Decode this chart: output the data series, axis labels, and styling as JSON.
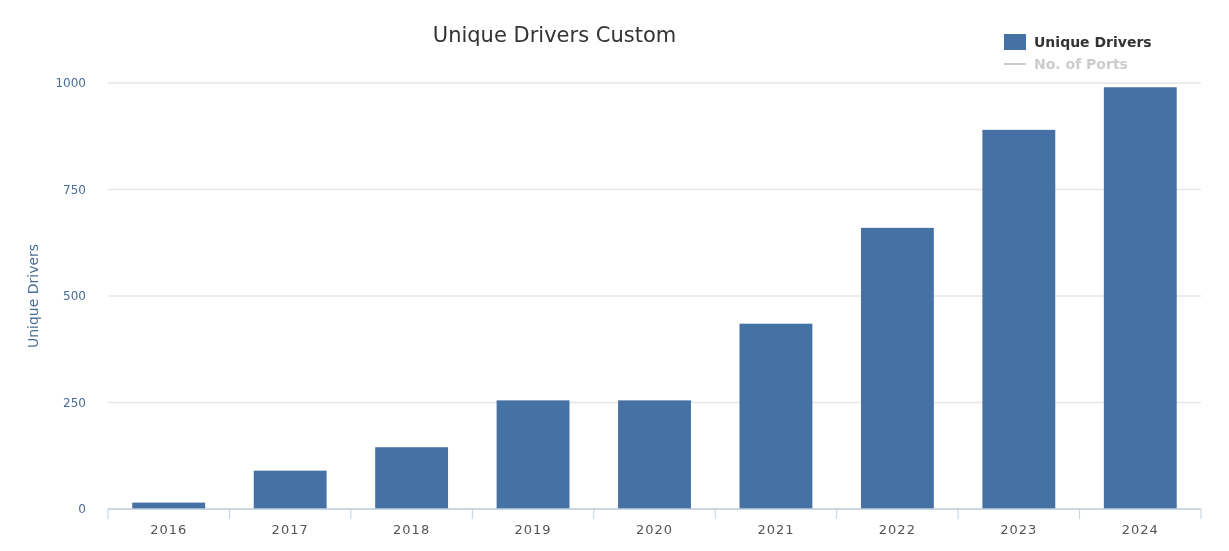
{
  "chart_data": {
    "type": "bar",
    "title": "Unique Drivers Custom",
    "ylabel": "Unique Drivers",
    "categories": [
      "2016",
      "2017",
      "2018",
      "2019",
      "2020",
      "2021",
      "2022",
      "2023",
      "2024"
    ],
    "series": [
      {
        "name": "Unique Drivers",
        "color": "#4571a5",
        "values": [
          15,
          90,
          145,
          255,
          255,
          435,
          660,
          890,
          990
        ]
      },
      {
        "name": "No. of Ports",
        "type": "line",
        "color": "#cccccc",
        "values": [
          null,
          null,
          null,
          null,
          null,
          null,
          null,
          null,
          null
        ]
      }
    ],
    "ylim": [
      0,
      1000
    ],
    "yticks": [
      0,
      250,
      500,
      750,
      1000
    ],
    "grid": "y",
    "legend": "top right"
  }
}
